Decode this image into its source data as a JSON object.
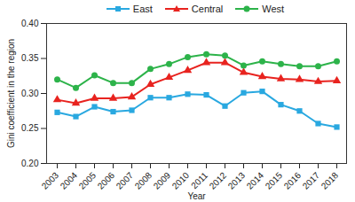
{
  "chart_data": {
    "type": "line",
    "x_label": "Year",
    "y_label": "Gini coefficient in the region",
    "categories": [
      "2003",
      "2004",
      "2005",
      "2006",
      "2007",
      "2008",
      "2009",
      "2010",
      "2011",
      "2012",
      "2013",
      "2014",
      "2015",
      "2016",
      "2017",
      "2018"
    ],
    "series": [
      {
        "name": "East",
        "color": "#29a8e0",
        "marker": "square",
        "values": [
          0.273,
          0.267,
          0.281,
          0.274,
          0.276,
          0.294,
          0.294,
          0.299,
          0.298,
          0.282,
          0.301,
          0.303,
          0.284,
          0.275,
          0.257,
          0.252
        ]
      },
      {
        "name": "Central",
        "color": "#e8231f",
        "marker": "triangle",
        "values": [
          0.291,
          0.286,
          0.293,
          0.293,
          0.295,
          0.313,
          0.323,
          0.333,
          0.344,
          0.344,
          0.33,
          0.324,
          0.321,
          0.32,
          0.317,
          0.318
        ]
      },
      {
        "name": "West",
        "color": "#2db34a",
        "marker": "circle",
        "values": [
          0.32,
          0.308,
          0.326,
          0.315,
          0.315,
          0.335,
          0.342,
          0.352,
          0.356,
          0.354,
          0.34,
          0.346,
          0.342,
          0.339,
          0.339,
          0.346
        ]
      }
    ],
    "ylim": [
      0.2,
      0.4
    ],
    "yticks": [
      {
        "value": 0.2,
        "label": "0.20"
      },
      0.25,
      {
        "value": 0.3,
        "label": "0.30"
      },
      0.35,
      {
        "value": 0.4,
        "label": "0.40"
      }
    ],
    "grid": false,
    "legend": "top"
  }
}
